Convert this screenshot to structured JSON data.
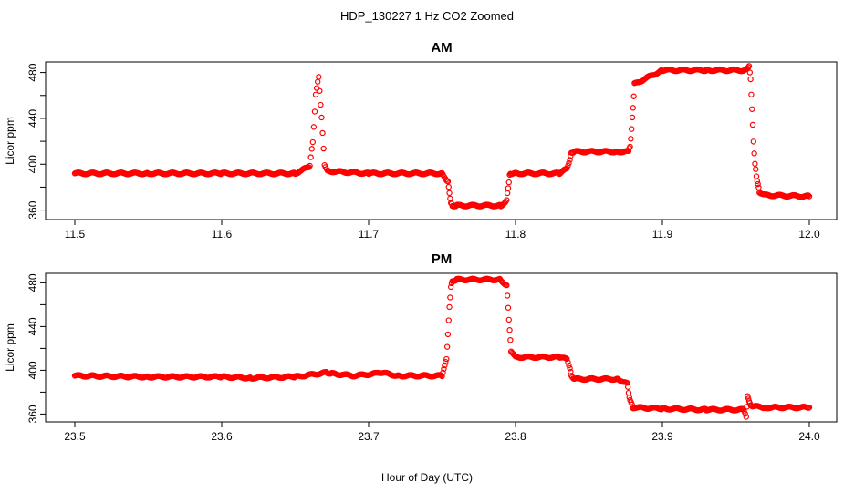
{
  "figure": {
    "title": "HDP_130227  1 Hz CO2 Zoomed",
    "xlabel": "Hour of Day (UTC)"
  },
  "colors": {
    "points": "#ff0000",
    "axes": "#000000",
    "background": "#ffffff"
  },
  "chart_data": [
    {
      "type": "scatter",
      "title": "AM",
      "xlabel": "Hour of Day (UTC)",
      "ylabel": "Licor ppm",
      "xlim": [
        11.5,
        12.0
      ],
      "ylim": [
        353,
        490
      ],
      "xticks": [
        "11.5",
        "11.6",
        "11.7",
        "11.8",
        "11.9",
        "12.0"
      ],
      "yticks": [
        "360",
        "400",
        "440",
        "480"
      ],
      "marker": "open-circle",
      "series": [
        {
          "x": [
            11.5,
            11.55,
            11.6,
            11.65,
            11.66,
            11.662,
            11.664,
            11.666,
            11.668,
            11.67,
            11.672,
            11.7,
            11.75,
            11.754,
            11.755,
            11.756,
            11.757,
            11.76,
            11.79,
            11.794,
            11.795,
            11.796,
            11.797,
            11.8,
            11.83,
            11.835,
            11.837,
            11.838,
            11.84,
            11.87,
            11.877,
            11.878,
            11.879,
            11.88,
            11.881,
            11.9,
            11.93,
            11.955,
            11.958,
            11.959,
            11.96,
            11.961,
            11.962,
            11.963,
            11.964,
            11.965,
            11.966,
            11.97,
            12.0
          ],
          "y": [
            392,
            392,
            392,
            392,
            398,
            420,
            460,
            477,
            440,
            400,
            394,
            392,
            392,
            385,
            375,
            366,
            364,
            364,
            364,
            368,
            380,
            390,
            392,
            392,
            392,
            396,
            404,
            410,
            411,
            411,
            411,
            416,
            430,
            450,
            470,
            482,
            482,
            482,
            483,
            486,
            474,
            448,
            420,
            400,
            390,
            382,
            376,
            373,
            372
          ]
        }
      ]
    },
    {
      "type": "scatter",
      "title": "PM",
      "xlabel": "Hour of Day (UTC)",
      "ylabel": "Licor ppm",
      "xlim": [
        23.5,
        24.0
      ],
      "ylim": [
        353,
        490
      ],
      "xticks": [
        "23.5",
        "23.6",
        "23.7",
        "23.8",
        "23.9",
        "24.0"
      ],
      "yticks": [
        "360",
        "400",
        "440",
        "480"
      ],
      "marker": "open-circle",
      "series": [
        {
          "x": [
            23.5,
            23.55,
            23.6,
            23.62,
            23.65,
            23.672,
            23.675,
            23.69,
            23.705,
            23.708,
            23.72,
            23.75,
            23.753,
            23.754,
            23.755,
            23.756,
            23.757,
            23.76,
            23.79,
            23.794,
            23.795,
            23.796,
            23.797,
            23.8,
            23.83,
            23.835,
            23.837,
            23.838,
            23.84,
            23.87,
            23.876,
            23.877,
            23.878,
            23.88,
            23.9,
            23.93,
            23.955,
            23.957,
            23.958,
            23.959,
            23.96,
            23.962,
            23.97,
            24.0
          ],
          "y": [
            395,
            394,
            394,
            393,
            394,
            398,
            397,
            395,
            397,
            398,
            395,
            395,
            410,
            433,
            458,
            476,
            482,
            483,
            483,
            477,
            458,
            436,
            418,
            412,
            412,
            410,
            402,
            395,
            392,
            392,
            388,
            380,
            372,
            366,
            365,
            364,
            364,
            358,
            376,
            372,
            368,
            367,
            366,
            366
          ]
        }
      ]
    }
  ]
}
